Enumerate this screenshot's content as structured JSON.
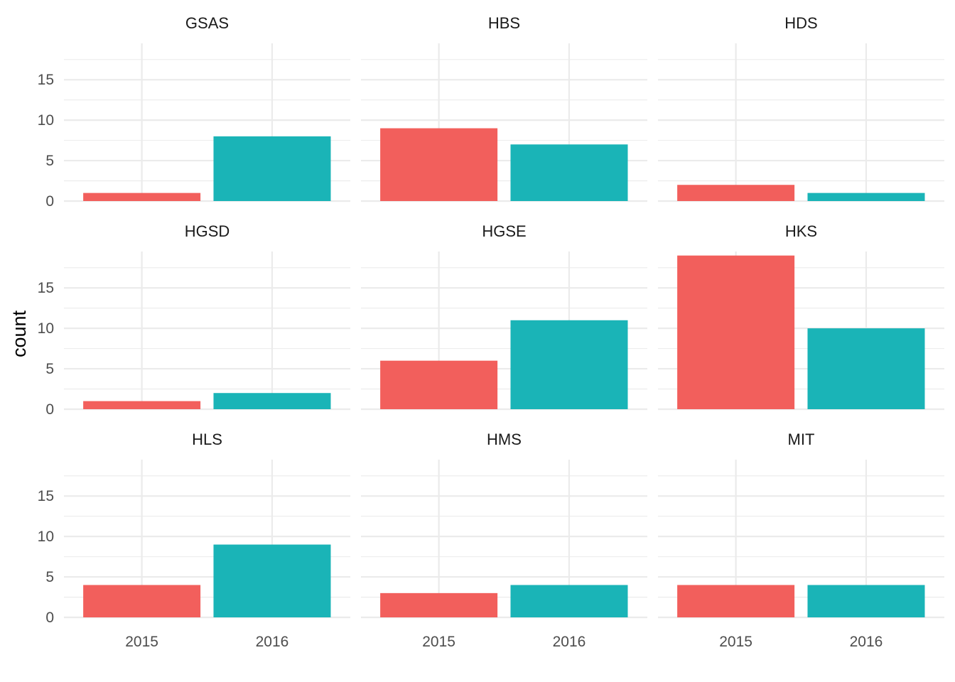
{
  "chart_data": {
    "type": "bar",
    "layout": "facet_wrap",
    "ylabel": "count",
    "xlabel": "",
    "categories": [
      "2015",
      "2016"
    ],
    "ylim": [
      0,
      19.5
    ],
    "yticks": [
      0,
      5,
      10,
      15
    ],
    "colors": {
      "2015": "#f25f5c",
      "2016": "#1ab4b7"
    },
    "grid": true,
    "legend": "none",
    "facets": [
      {
        "name": "GSAS",
        "values": [
          1,
          8
        ]
      },
      {
        "name": "HBS",
        "values": [
          9,
          7
        ]
      },
      {
        "name": "HDS",
        "values": [
          2,
          1
        ]
      },
      {
        "name": "HGSD",
        "values": [
          1,
          2
        ]
      },
      {
        "name": "HGSE",
        "values": [
          6,
          11
        ]
      },
      {
        "name": "HKS",
        "values": [
          19,
          10
        ]
      },
      {
        "name": "HLS",
        "values": [
          4,
          9
        ]
      },
      {
        "name": "HMS",
        "values": [
          3,
          4
        ]
      },
      {
        "name": "MIT",
        "values": [
          4,
          4
        ]
      }
    ]
  }
}
